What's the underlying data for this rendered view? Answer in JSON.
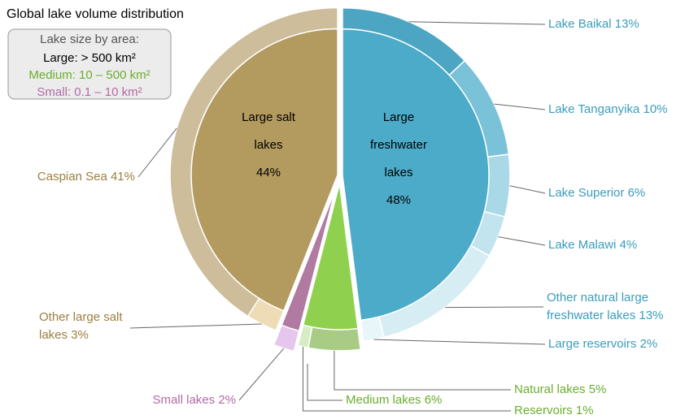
{
  "chart_data": {
    "type": "sunburst",
    "title": "Global lake volume distribution",
    "legend": {
      "title": "Lake size by area:",
      "items": [
        {
          "label": "Large: > 500  km²",
          "color": "#000000"
        },
        {
          "label": "Medium: 10 – 500 km²",
          "color": "#6aae2e"
        },
        {
          "label": "Small: 0.1 – 10 km²",
          "color": "#b36aa6"
        }
      ]
    },
    "inner": {
      "labels": [
        "Large freshwater lakes",
        "Medium lakes",
        "Small lakes",
        "Large salt lakes"
      ],
      "values": [
        48,
        6,
        2,
        44
      ],
      "value_labels": [
        "48%",
        "6%",
        "2%",
        "44%"
      ],
      "colors": [
        "#4cabc8",
        "#8fd14f",
        "#b07aa1",
        "#b39a5f"
      ],
      "label_colors": [
        "#000000",
        "#6aae2e",
        "#b36aa6",
        "#000000"
      ]
    },
    "outer": {
      "labels": [
        "Lake Baikal",
        "Lake Tanganyika",
        "Lake Superior",
        "Lake Malawi",
        "Other natural large freshwater lakes",
        "Large reservoirs",
        "Natural lakes",
        "Reservoirs",
        null,
        "Other large salt lakes",
        "Caspian Sea"
      ],
      "values": [
        13,
        10,
        6,
        4,
        13,
        2,
        5,
        1,
        2,
        3,
        41
      ],
      "value_labels": [
        "13%",
        "10%",
        "6%",
        "4%",
        "13%",
        "2%",
        "5%",
        "1%",
        null,
        "3%",
        "41%"
      ],
      "colors": [
        "#4ca6c3",
        "#7ac2d7",
        "#a9d8e6",
        "#c2e4ee",
        "#d6edf4",
        "#e8f5f9",
        "#a8cc86",
        "#d6ecc4",
        "#e6c6ec",
        "#eddcb5",
        "#cdbd9b"
      ],
      "label_colors": [
        "#3a9dbd",
        "#3a9dbd",
        "#3a9dbd",
        "#3a9dbd",
        "#3a9dbd",
        "#3a9dbd",
        "#6aae2e",
        "#6aae2e",
        "#b36aa6",
        "#9c7f40",
        "#9c7f40"
      ]
    }
  }
}
